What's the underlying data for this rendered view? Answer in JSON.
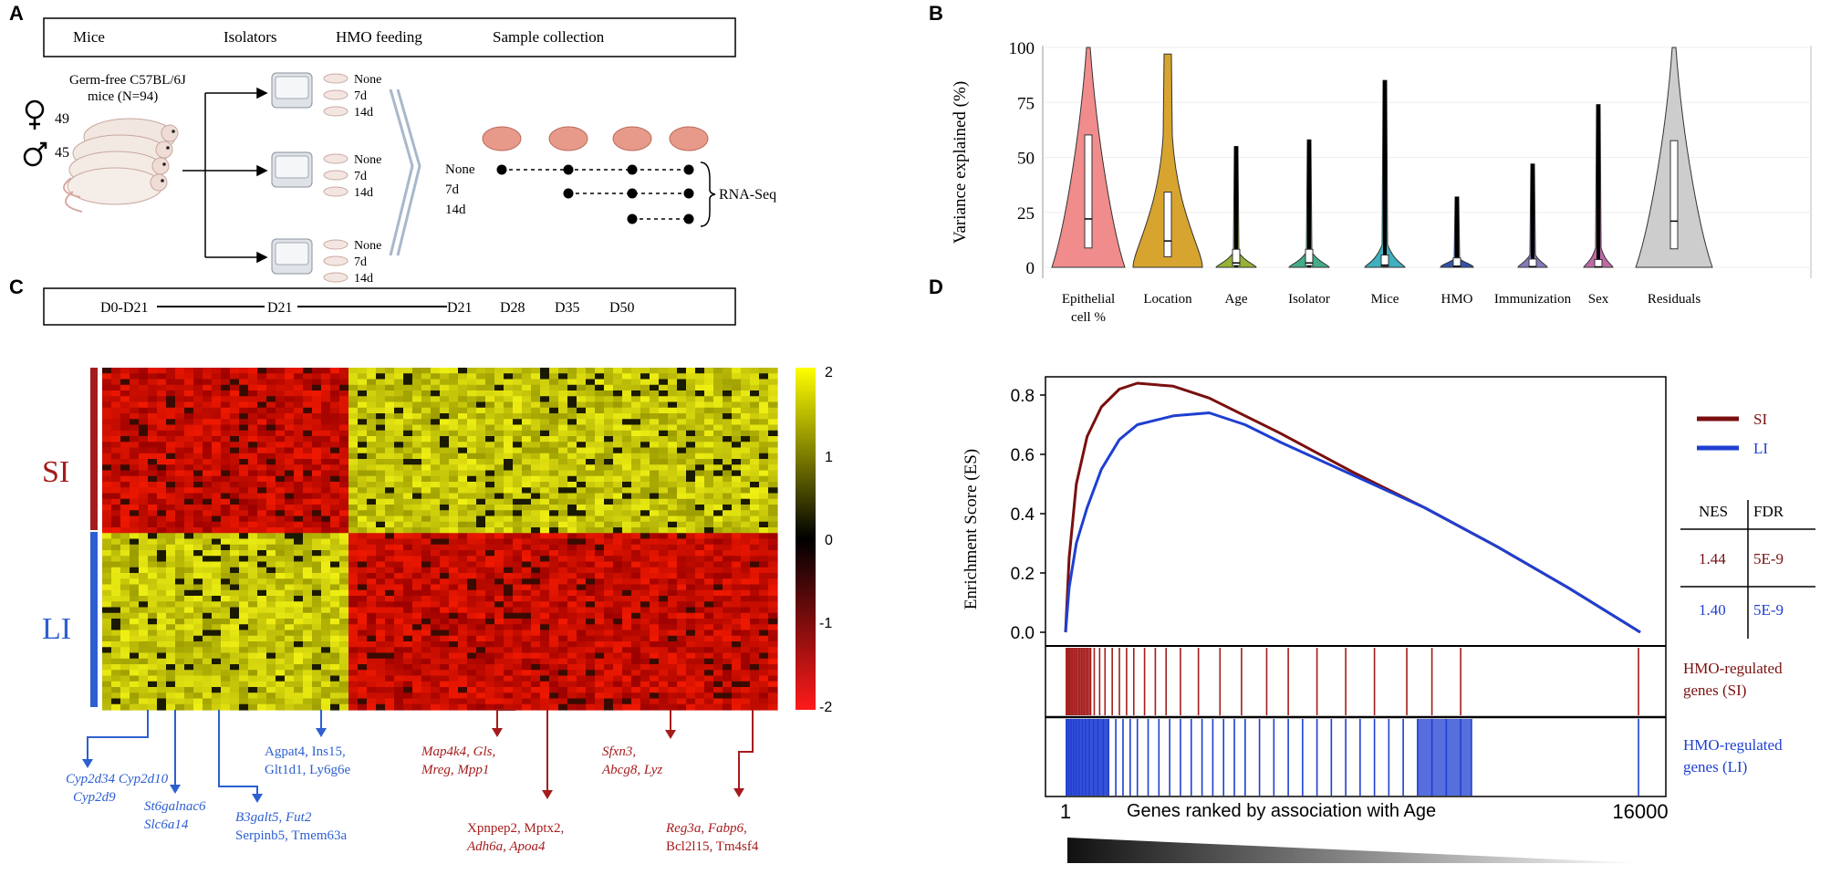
{
  "panel_labels": [
    "A",
    "B",
    "C",
    "D"
  ],
  "panelA": {
    "header": [
      "Mice",
      "Isolators",
      "HMO feeding",
      "Sample collection"
    ],
    "mice_desc": [
      "Germ-free C57BL/6J",
      "mice (N=94)"
    ],
    "female_count": "49",
    "male_count": "45",
    "feeding_groups": [
      "None",
      "7d",
      "14d"
    ],
    "collection_rows": [
      "None",
      "7d",
      "14d"
    ],
    "rnaseq": "RNA-Seq",
    "timeline": [
      "D0-D21",
      "D21",
      "D21",
      "D28",
      "D35",
      "D50"
    ]
  },
  "panelB": {
    "chart_data": {
      "type": "violin",
      "ylabel": "Variance  explained  (%)",
      "ylim": [
        0,
        100
      ],
      "yticks": [
        0,
        25,
        50,
        75,
        100
      ],
      "categories": [
        "Epithelial cell %",
        "Location",
        "Age",
        "Isolator",
        "Mice",
        "HMO",
        "Immunization",
        "Sex",
        "Residuals"
      ],
      "category_lines": [
        [
          "Epithelial",
          "cell %"
        ],
        [
          "Location"
        ],
        [
          "Age"
        ],
        [
          "Isolator"
        ],
        [
          "Mice"
        ],
        [
          "HMO"
        ],
        [
          "Immunization"
        ],
        [
          "Sex"
        ],
        [
          "Residuals"
        ]
      ],
      "max_values": [
        100,
        97,
        55,
        58,
        85,
        32,
        47,
        74,
        100
      ],
      "medians": [
        22,
        12,
        2,
        2,
        1,
        0.5,
        0.3,
        0.2,
        21
      ],
      "colors": [
        "#f08080",
        "#d49a1a",
        "#8cab1e",
        "#2fa47c",
        "#2aa7b8",
        "#1f3ea0",
        "#7a6ab5",
        "#b55a9a",
        "#c8c8c8"
      ]
    }
  },
  "panelC": {
    "group_labels": [
      "SI",
      "LI"
    ],
    "legend_ticks": [
      "2",
      "1",
      "0",
      "-1",
      "-2"
    ],
    "gene_groups_blue": [
      [
        "Cyp2d34 Cyp2d10",
        "Cyp2d9"
      ],
      [
        "St6galnac6",
        "Slc6a14"
      ],
      [
        "B3galt5, Fut2",
        "Serpinb5, Tmem63a"
      ],
      [
        "Agpat4, Ins15,",
        "Glt1d1, Ly6g6e"
      ]
    ],
    "gene_groups_red": [
      [
        "Map4k4, Gls,",
        "Mreg, Mpp1"
      ],
      [
        "Xpnpep2, Mptx2,",
        "Adh6a, Apoa4"
      ],
      [
        "Sfxn3,",
        "Abcg8, Lyz"
      ],
      [
        "Reg3a, Fabp6,",
        "Bcl2l15, Tm4sf4"
      ]
    ]
  },
  "panelD": {
    "chart_data": {
      "type": "line",
      "ylabel": "Enrichment  Score (ES)",
      "xlabel": "Genes ranked by association  with Age",
      "x_ticks": [
        "1",
        "16000"
      ],
      "ylim": [
        0,
        0.85
      ],
      "yticks": [
        "0.0",
        "0.2",
        "0.4",
        "0.6",
        "0.8"
      ],
      "series": [
        {
          "name": "SI",
          "color": "#7a0f0f",
          "x": [
            1,
            100,
            300,
            600,
            1000,
            1500,
            2000,
            3000,
            4000,
            6000,
            8000,
            10000,
            12000,
            14000,
            16000
          ],
          "y": [
            0.0,
            0.25,
            0.5,
            0.66,
            0.76,
            0.82,
            0.84,
            0.83,
            0.79,
            0.67,
            0.54,
            0.42,
            0.29,
            0.15,
            0.0
          ]
        },
        {
          "name": "LI",
          "color": "#1f3fd0",
          "x": [
            1,
            100,
            300,
            600,
            1000,
            1500,
            2000,
            3000,
            4000,
            5000,
            6000,
            8000,
            10000,
            12000,
            14000,
            16000
          ],
          "y": [
            0.0,
            0.15,
            0.3,
            0.42,
            0.55,
            0.65,
            0.7,
            0.73,
            0.74,
            0.7,
            0.64,
            0.53,
            0.42,
            0.29,
            0.15,
            0.0
          ]
        }
      ],
      "stats_header": [
        "NES",
        "FDR"
      ],
      "stats": [
        [
          "1.44",
          "5E-9"
        ],
        [
          "1.40",
          "5E-9"
        ]
      ],
      "hit_labels": [
        [
          "HMO-regulated",
          "genes (SI)"
        ],
        [
          "HMO-regulated",
          "genes (LI)"
        ]
      ],
      "si_hits": [
        30,
        80,
        120,
        180,
        240,
        300,
        380,
        450,
        520,
        600,
        700,
        800,
        950,
        1100,
        1300,
        1500,
        1700,
        1900,
        2200,
        2500,
        2800,
        3200,
        3700,
        4300,
        4900,
        5600,
        6200,
        7000,
        7800,
        8600,
        9500,
        10200,
        11000,
        15950
      ],
      "li_hits": [
        30,
        90,
        160,
        230,
        300,
        380,
        470,
        560,
        660,
        780,
        900,
        1050,
        1200,
        1400,
        1600,
        1800,
        2000,
        2300,
        2600,
        2900,
        3200,
        3500,
        3800,
        4100,
        4400,
        4700,
        5000,
        5400,
        5800,
        6200,
        6600,
        7000,
        7400,
        7800,
        8200,
        8600,
        9000,
        9400,
        9800,
        10200,
        10600,
        11000,
        11300,
        15950
      ]
    }
  }
}
